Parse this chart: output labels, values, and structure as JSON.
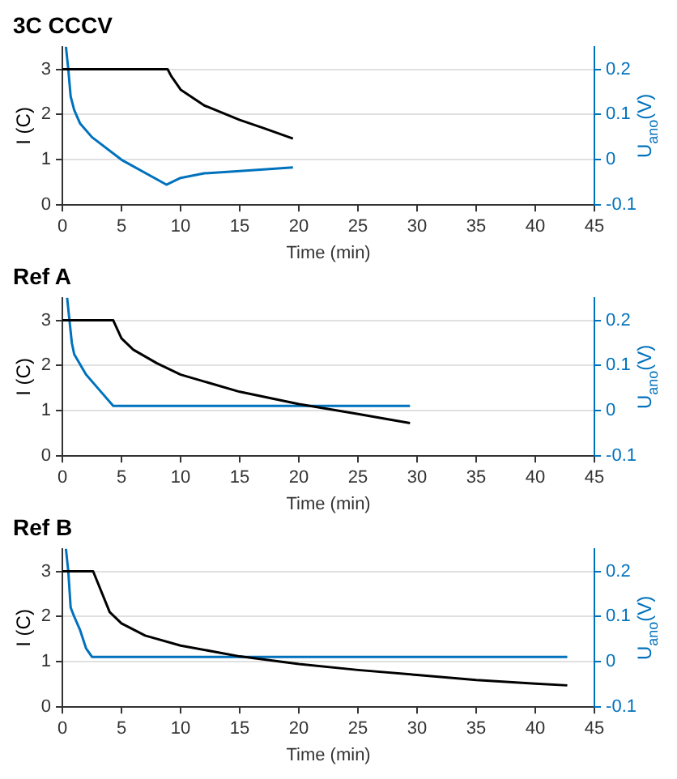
{
  "chart_data": [
    {
      "type": "line",
      "title": "3C CCCV",
      "xlabel": "Time (min)",
      "ylabel": "I (C)",
      "y2label": "U$_{ano}$(V)",
      "xlim": [
        0,
        45
      ],
      "xticks": [
        0,
        5,
        10,
        15,
        20,
        25,
        30,
        35,
        40,
        45
      ],
      "ylim": [
        0,
        3.5
      ],
      "yticks": [
        0,
        1,
        2,
        3
      ],
      "y2lim": [
        -0.1,
        0.25
      ],
      "y2ticks": [
        -0.1,
        0,
        0.1,
        0.2
      ],
      "grid": "y",
      "legend": false,
      "marker": "none",
      "line_style": "solid",
      "series": [
        {
          "color": "#000000",
          "x": [
            0,
            8.9,
            9.2,
            10,
            12,
            15,
            17,
            19.5
          ],
          "values": [
            3,
            3,
            2.85,
            2.55,
            2.2,
            1.88,
            1.7,
            1.47
          ]
        },
        {
          "color": "#0072bd",
          "axis": "y2",
          "x": [
            0.3,
            0.5,
            0.7,
            1,
            1.5,
            2.5,
            5,
            8.8,
            10,
            12,
            15,
            19.5
          ],
          "values": [
            0.25,
            0.2,
            0.14,
            0.11,
            0.08,
            0.05,
            0,
            -0.055,
            -0.04,
            -0.03,
            -0.025,
            -0.017
          ]
        }
      ]
    },
    {
      "type": "line",
      "title": "Ref A",
      "xlabel": "Time (min)",
      "ylabel": "I (C)",
      "y2label": "U$_{ano}$(V)",
      "xlim": [
        0,
        45
      ],
      "xticks": [
        0,
        5,
        10,
        15,
        20,
        25,
        30,
        35,
        40,
        45
      ],
      "ylim": [
        0,
        3.5
      ],
      "yticks": [
        0,
        1,
        2,
        3
      ],
      "y2lim": [
        -0.1,
        0.25
      ],
      "y2ticks": [
        -0.1,
        0,
        0.1,
        0.2
      ],
      "grid": "y",
      "legend": false,
      "marker": "none",
      "line_style": "solid",
      "series": [
        {
          "color": "#000000",
          "x": [
            0,
            4.3,
            5,
            6,
            8,
            10,
            15,
            20,
            25,
            29.4
          ],
          "values": [
            3,
            3,
            2.6,
            2.35,
            2.05,
            1.8,
            1.42,
            1.15,
            0.93,
            0.73
          ]
        },
        {
          "color": "#0072bd",
          "axis": "y2",
          "x": [
            0.4,
            0.6,
            0.8,
            1,
            2,
            3,
            4.3,
            29.4
          ],
          "values": [
            0.25,
            0.2,
            0.15,
            0.125,
            0.08,
            0.05,
            0.011,
            0.011
          ]
        }
      ]
    },
    {
      "type": "line",
      "title": "Ref B",
      "xlabel": "Time (min)",
      "ylabel": "I (C)",
      "y2label": "U$_{ano}$(V)",
      "xlim": [
        0,
        45
      ],
      "xticks": [
        0,
        5,
        10,
        15,
        20,
        25,
        30,
        35,
        40,
        45
      ],
      "ylim": [
        0,
        3.5
      ],
      "yticks": [
        0,
        1,
        2,
        3
      ],
      "y2lim": [
        -0.1,
        0.25
      ],
      "y2ticks": [
        -0.1,
        0,
        0.1,
        0.2
      ],
      "grid": "y",
      "legend": false,
      "marker": "none",
      "line_style": "solid",
      "series": [
        {
          "color": "#000000",
          "x": [
            0,
            2.6,
            4,
            5,
            7,
            10,
            15,
            20,
            25,
            30,
            35,
            40,
            42.7
          ],
          "values": [
            3,
            3,
            2.1,
            1.85,
            1.58,
            1.36,
            1.12,
            0.95,
            0.82,
            0.71,
            0.6,
            0.52,
            0.48
          ]
        },
        {
          "color": "#0072bd",
          "axis": "y2",
          "x": [
            0.3,
            0.5,
            0.7,
            1,
            1.5,
            2,
            2.5,
            42.7
          ],
          "values": [
            0.25,
            0.2,
            0.12,
            0.1,
            0.07,
            0.03,
            0.011,
            0.011
          ]
        }
      ]
    }
  ]
}
